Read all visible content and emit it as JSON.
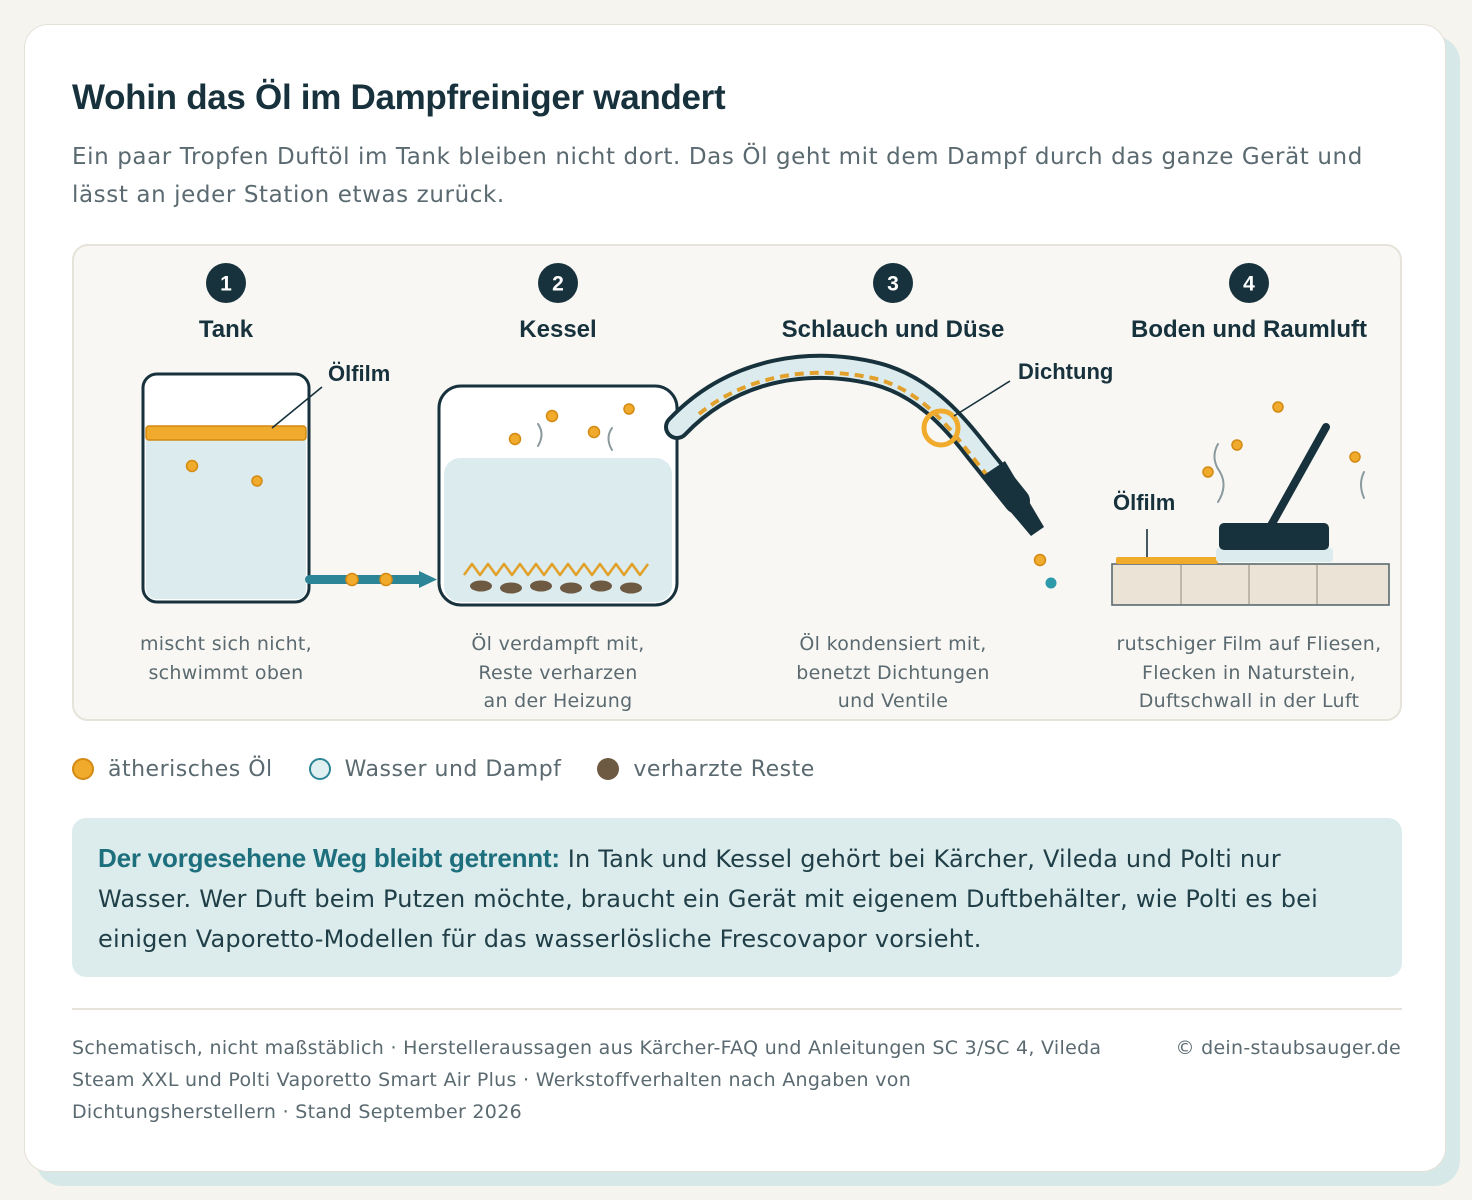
{
  "header": {
    "title": "Wohin das Öl im Dampfreiniger wandert",
    "subtitle": "Ein paar Tropfen Duftöl im Tank bleiben nicht dort. Das Öl geht mit dem Dampf durch das ganze Gerät und lässt an jeder Station etwas zurück."
  },
  "diagram": {
    "stages": [
      {
        "number": "1",
        "title": "Tank",
        "description": [
          "mischt sich nicht,",
          "schwimmt oben"
        ]
      },
      {
        "number": "2",
        "title": "Kessel",
        "description": [
          "Öl verdampft mit,",
          "Reste verharzen",
          "an der Heizung"
        ]
      },
      {
        "number": "3",
        "title": "Schlauch und Düse",
        "description": [
          "Öl kondensiert mit,",
          "benetzt Dichtungen",
          "und Ventile"
        ]
      },
      {
        "number": "4",
        "title": "Boden und Raumluft",
        "description": [
          "rutschiger Film auf Fliesen,",
          "Flecken in Naturstein,",
          "Duftschwall in der Luft"
        ]
      }
    ],
    "labels": {
      "tank_film": "Ölfilm",
      "seal": "Dichtung",
      "floor_film": "Ölfilm"
    }
  },
  "legend": [
    {
      "label": "ätherisches Öl",
      "color": "#f0aa2c",
      "icon": "oil-dot"
    },
    {
      "label": "Wasser und Dampf",
      "color": "#e0f0f0",
      "icon": "water-dot"
    },
    {
      "label": "verharzte Reste",
      "color": "#6e5a43",
      "icon": "residue-dot"
    }
  ],
  "note": {
    "lead": "Der vorgesehene Weg bleibt getrennt:",
    "text": " In Tank und Kessel gehört bei Kärcher, Vileda und Polti nur Wasser. Wer Duft beim Putzen möchte, braucht ein Gerät mit eigenem Duftbehälter, wie Polti es bei einigen Vaporetto-Modellen für das wasserlösliche Frescovapor vorsieht."
  },
  "footer": {
    "sources": "Schematisch, nicht maßstäblich · Herstelleraussagen aus Kärcher-FAQ und Anleitungen SC 3/SC 4, Vileda Steam XXL und Polti Vaporetto Smart Air Plus · Werkstoffverhalten nach Angaben von Dichtungsherstellern · Stand September 2026",
    "copyright": "© dein-staubsauger.de"
  },
  "colors": {
    "oil": "#f0aa2c",
    "dark": "#17323c",
    "water": "#dcecee",
    "pipe": "#2c8597",
    "residue": "#6e5a43",
    "accent": "#1d6f7e"
  }
}
